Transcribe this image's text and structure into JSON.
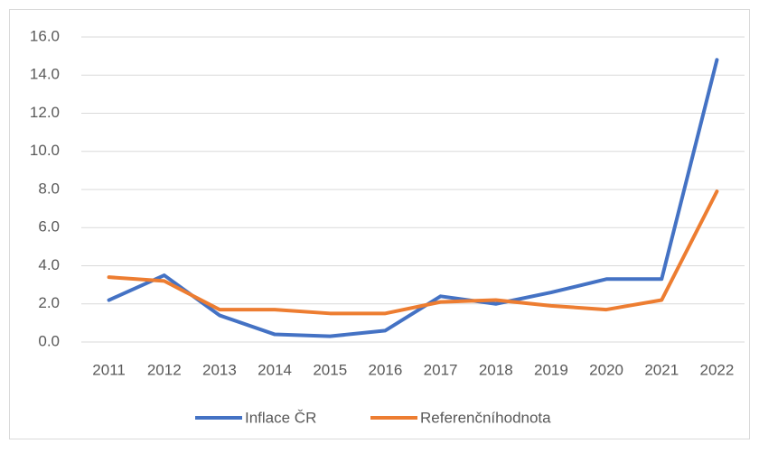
{
  "chart_data": {
    "type": "line",
    "categories": [
      "2011",
      "2012",
      "2013",
      "2014",
      "2015",
      "2016",
      "2017",
      "2018",
      "2019",
      "2020",
      "2021",
      "2022"
    ],
    "series": [
      {
        "name": "Inflace ČR",
        "color": "#4472c4",
        "values": [
          2.2,
          3.5,
          1.4,
          0.4,
          0.3,
          0.6,
          2.4,
          2.0,
          2.6,
          3.3,
          3.3,
          14.8
        ]
      },
      {
        "name": "Referenčníhodnota",
        "color": "#ed7d31",
        "values": [
          3.4,
          3.2,
          1.7,
          1.7,
          1.5,
          1.5,
          2.1,
          2.2,
          1.9,
          1.7,
          2.2,
          7.9
        ]
      }
    ],
    "ylim": [
      0,
      16
    ],
    "yticks": [
      {
        "value": 0,
        "label": "0.0"
      },
      {
        "value": 2,
        "label": "2.0"
      },
      {
        "value": 4,
        "label": "4.0"
      },
      {
        "value": 6,
        "label": "6.0"
      },
      {
        "value": 8,
        "label": "8.0"
      },
      {
        "value": 10,
        "label": "10.0"
      },
      {
        "value": 12,
        "label": "12.0"
      },
      {
        "value": 14,
        "label": "14.0"
      },
      {
        "value": 16,
        "label": "16.0"
      }
    ],
    "grid": true,
    "legend": "bottom"
  }
}
